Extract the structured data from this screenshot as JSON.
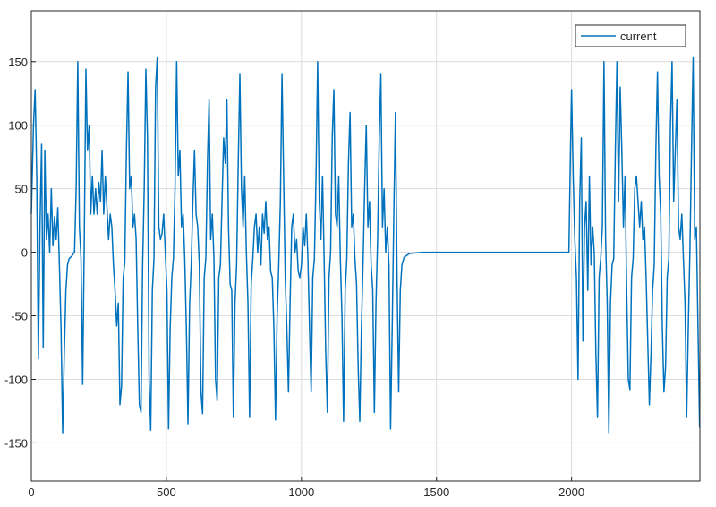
{
  "chart_data": {
    "type": "line",
    "x": [
      0,
      8,
      14,
      20,
      26,
      32,
      38,
      44,
      50,
      56,
      62,
      68,
      74,
      80,
      86,
      92,
      98,
      104,
      110,
      116,
      122,
      128,
      134,
      140,
      150,
      160,
      166,
      172,
      178,
      184,
      190,
      196,
      202,
      208,
      214,
      220,
      226,
      232,
      238,
      244,
      250,
      256,
      262,
      268,
      274,
      280,
      286,
      292,
      298,
      304,
      310,
      316,
      322,
      328,
      334,
      340,
      346,
      352,
      358,
      364,
      370,
      376,
      382,
      388,
      394,
      400,
      406,
      412,
      418,
      424,
      430,
      436,
      442,
      448,
      454,
      460,
      466,
      472,
      478,
      484,
      490,
      496,
      502,
      508,
      514,
      520,
      526,
      532,
      538,
      544,
      550,
      556,
      562,
      568,
      574,
      580,
      586,
      592,
      598,
      604,
      610,
      616,
      622,
      628,
      634,
      640,
      646,
      652,
      658,
      664,
      670,
      676,
      682,
      688,
      694,
      700,
      706,
      712,
      718,
      724,
      730,
      736,
      742,
      748,
      754,
      760,
      766,
      772,
      778,
      784,
      790,
      796,
      802,
      808,
      814,
      820,
      826,
      832,
      838,
      844,
      850,
      856,
      862,
      868,
      874,
      880,
      886,
      892,
      898,
      904,
      910,
      916,
      922,
      928,
      934,
      940,
      946,
      952,
      958,
      964,
      970,
      976,
      982,
      988,
      994,
      1000,
      1006,
      1012,
      1018,
      1024,
      1030,
      1036,
      1042,
      1048,
      1054,
      1060,
      1066,
      1072,
      1078,
      1084,
      1090,
      1096,
      1102,
      1108,
      1114,
      1120,
      1126,
      1132,
      1138,
      1144,
      1150,
      1156,
      1162,
      1168,
      1174,
      1180,
      1186,
      1192,
      1198,
      1204,
      1210,
      1216,
      1222,
      1228,
      1234,
      1240,
      1246,
      1252,
      1258,
      1264,
      1270,
      1276,
      1282,
      1288,
      1294,
      1300,
      1306,
      1312,
      1318,
      1324,
      1330,
      1336,
      1342,
      1348,
      1354,
      1360,
      1366,
      1372,
      1380,
      1400,
      1450,
      1990,
      1996,
      2000,
      2006,
      2012,
      2018,
      2024,
      2030,
      2036,
      2042,
      2048,
      2054,
      2060,
      2066,
      2072,
      2078,
      2084,
      2090,
      2096,
      2102,
      2108,
      2114,
      2120,
      2126,
      2132,
      2138,
      2144,
      2150,
      2156,
      2162,
      2168,
      2174,
      2180,
      2186,
      2192,
      2198,
      2204,
      2210,
      2216,
      2222,
      2228,
      2234,
      2240,
      2246,
      2252,
      2258,
      2264,
      2270,
      2276,
      2282,
      2288,
      2294,
      2300,
      2306,
      2312,
      2318,
      2324,
      2330,
      2336,
      2342,
      2348,
      2354,
      2360,
      2366,
      2372,
      2378,
      2384,
      2390,
      2396,
      2402,
      2408,
      2414,
      2420,
      2426,
      2432,
      2438,
      2444,
      2450,
      2456,
      2462,
      2468,
      2474
    ],
    "series": [
      {
        "name": "current",
        "color": "#0072bd",
        "values": [
          30,
          100,
          128,
          60,
          -84,
          20,
          85,
          -75,
          80,
          10,
          30,
          0,
          50,
          5,
          28,
          10,
          35,
          -10,
          -60,
          -142,
          -80,
          -30,
          -10,
          -5,
          -3,
          0,
          50,
          150,
          20,
          -5,
          -104,
          10,
          144,
          80,
          100,
          30,
          60,
          30,
          50,
          30,
          55,
          40,
          80,
          30,
          60,
          35,
          10,
          30,
          20,
          -10,
          -30,
          -58,
          -40,
          -120,
          -105,
          -20,
          -8,
          80,
          142,
          50,
          60,
          20,
          30,
          10,
          -60,
          -120,
          -126,
          -10,
          50,
          144,
          90,
          -100,
          -140,
          -30,
          -5,
          130,
          153,
          20,
          10,
          15,
          30,
          0,
          -30,
          -139,
          -60,
          -20,
          -5,
          50,
          150,
          60,
          80,
          20,
          30,
          -5,
          -60,
          -135,
          -40,
          -10,
          40,
          80,
          30,
          20,
          -10,
          -110,
          -127,
          -20,
          -5,
          70,
          120,
          10,
          30,
          -5,
          -100,
          -117,
          -20,
          -10,
          40,
          90,
          70,
          120,
          20,
          -25,
          -30,
          -130,
          -40,
          -10,
          70,
          140,
          50,
          20,
          60,
          0,
          -40,
          -130,
          -25,
          -5,
          20,
          30,
          0,
          20,
          -10,
          30,
          15,
          40,
          10,
          20,
          -15,
          -20,
          -60,
          -132,
          -50,
          -10,
          40,
          140,
          60,
          -20,
          -60,
          -110,
          -40,
          20,
          30,
          0,
          10,
          -15,
          -20,
          -10,
          20,
          5,
          30,
          -5,
          -60,
          -110,
          -20,
          -5,
          60,
          150,
          40,
          10,
          60,
          -5,
          -80,
          -126,
          -20,
          0,
          90,
          128,
          30,
          20,
          60,
          -5,
          -50,
          -133,
          -30,
          -5,
          70,
          110,
          20,
          30,
          -5,
          -25,
          -90,
          -133,
          -60,
          -10,
          50,
          100,
          20,
          40,
          -10,
          -30,
          -126,
          -40,
          10,
          90,
          140,
          20,
          50,
          0,
          20,
          -10,
          -139,
          -60,
          30,
          110,
          -20,
          -110,
          -30,
          -10,
          -4,
          -1,
          0,
          0,
          80,
          128,
          60,
          10,
          -20,
          -100,
          40,
          90,
          -70,
          20,
          40,
          -30,
          60,
          -10,
          20,
          0,
          -80,
          -130,
          -20,
          -5,
          20,
          150,
          10,
          -40,
          -142,
          -40,
          -10,
          -5,
          80,
          150,
          40,
          130,
          80,
          20,
          60,
          -30,
          -100,
          -108,
          -20,
          -5,
          50,
          60,
          40,
          20,
          40,
          10,
          20,
          -20,
          -70,
          -120,
          -80,
          -30,
          -10,
          80,
          142,
          60,
          30,
          -60,
          -110,
          -90,
          -20,
          -5,
          100,
          150,
          40,
          80,
          120,
          20,
          10,
          30,
          -5,
          -40,
          -130,
          -60,
          0,
          80,
          153,
          10,
          20,
          -60,
          -138
        ]
      }
    ],
    "xlim": [
      0,
      2475
    ],
    "ylim": [
      -180,
      190
    ],
    "xticks": [
      0,
      500,
      1000,
      1500,
      2000
    ],
    "yticks": [
      -150,
      -100,
      -50,
      0,
      50,
      100,
      150
    ],
    "grid": true,
    "legend": "northeast"
  }
}
